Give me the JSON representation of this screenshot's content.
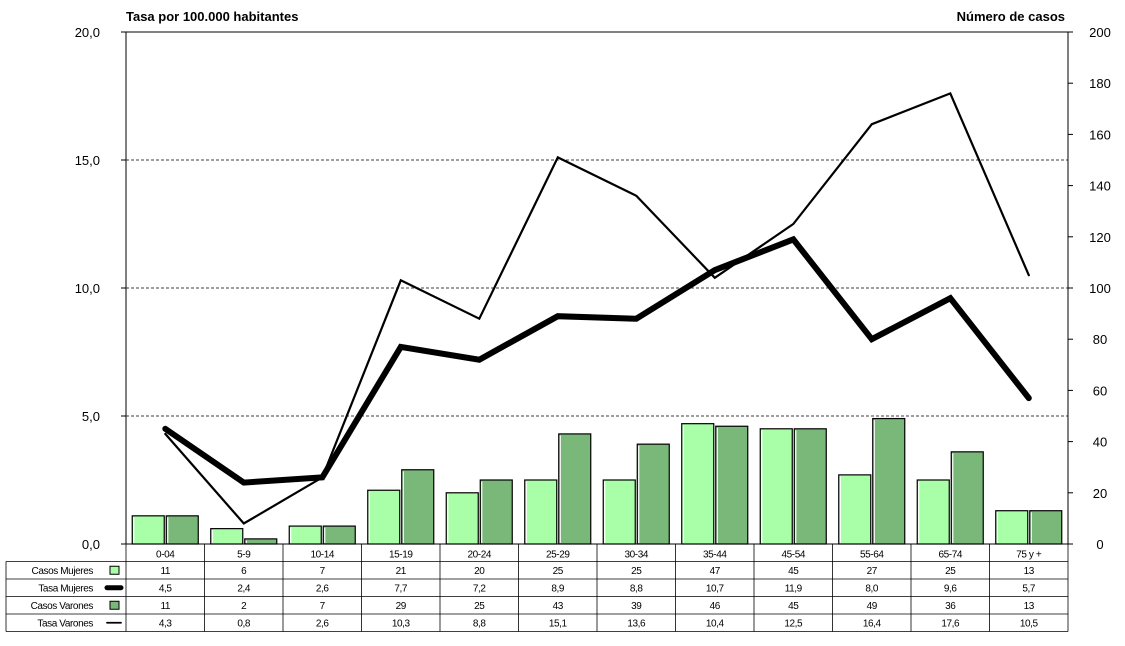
{
  "chart_data": {
    "type": "bar",
    "title": "",
    "left_axis_title": "Tasa por 100.000 habitantes",
    "right_axis_title": "Número de casos",
    "categories": [
      "0-04",
      "5-9",
      "10-14",
      "15-19",
      "20-24",
      "25-29",
      "30-34",
      "35-44",
      "45-54",
      "55-64",
      "65-74",
      "75 y +"
    ],
    "left_axis": {
      "range": [
        0,
        20
      ],
      "ticks": [
        "0,0",
        "5,0",
        "10,0",
        "15,0",
        "20,0"
      ],
      "tick_values": [
        0,
        5,
        10,
        15,
        20
      ]
    },
    "right_axis": {
      "range": [
        0,
        200
      ],
      "ticks": [
        "0",
        "20",
        "40",
        "60",
        "80",
        "100",
        "120",
        "140",
        "160",
        "180",
        "200"
      ],
      "tick_values": [
        0,
        20,
        40,
        60,
        80,
        100,
        120,
        140,
        160,
        180,
        200
      ]
    },
    "grid": "horizontal dashed at 5,0 10,0 15,0",
    "legend": "data table below chart",
    "series": [
      {
        "name": "Casos Mujeres",
        "kind": "bar",
        "axis": "right",
        "color": "#A8FFA8",
        "values": [
          11,
          6,
          7,
          21,
          20,
          25,
          25,
          47,
          45,
          27,
          25,
          13
        ],
        "labels": [
          "11",
          "6",
          "7",
          "21",
          "20",
          "25",
          "25",
          "47",
          "45",
          "27",
          "25",
          "13"
        ]
      },
      {
        "name": "Tasa Mujeres",
        "kind": "line",
        "axis": "left",
        "color": "#000000",
        "weight": "thick",
        "values": [
          4.5,
          2.4,
          2.6,
          7.7,
          7.2,
          8.9,
          8.8,
          10.7,
          11.9,
          8.0,
          9.6,
          5.7
        ],
        "labels": [
          "4,5",
          "2,4",
          "2,6",
          "7,7",
          "7,2",
          "8,9",
          "8,8",
          "10,7",
          "11,9",
          "8,0",
          "9,6",
          "5,7"
        ]
      },
      {
        "name": "Casos Varones",
        "kind": "bar",
        "axis": "right",
        "color": "#7AB87A",
        "values": [
          11,
          2,
          7,
          29,
          25,
          43,
          39,
          46,
          45,
          49,
          36,
          13
        ],
        "labels": [
          "11",
          "2",
          "7",
          "29",
          "25",
          "43",
          "39",
          "46",
          "45",
          "49",
          "36",
          "13"
        ]
      },
      {
        "name": "Tasa Varones",
        "kind": "line",
        "axis": "left",
        "color": "#000000",
        "weight": "thin",
        "values": [
          4.3,
          0.8,
          2.6,
          10.3,
          8.8,
          15.1,
          13.6,
          10.4,
          12.5,
          16.4,
          17.6,
          10.5
        ],
        "labels": [
          "4,3",
          "0,8",
          "2,6",
          "10,3",
          "8,8",
          "15,1",
          "13,6",
          "10,4",
          "12,5",
          "16,4",
          "17,6",
          "10,5"
        ]
      }
    ]
  }
}
